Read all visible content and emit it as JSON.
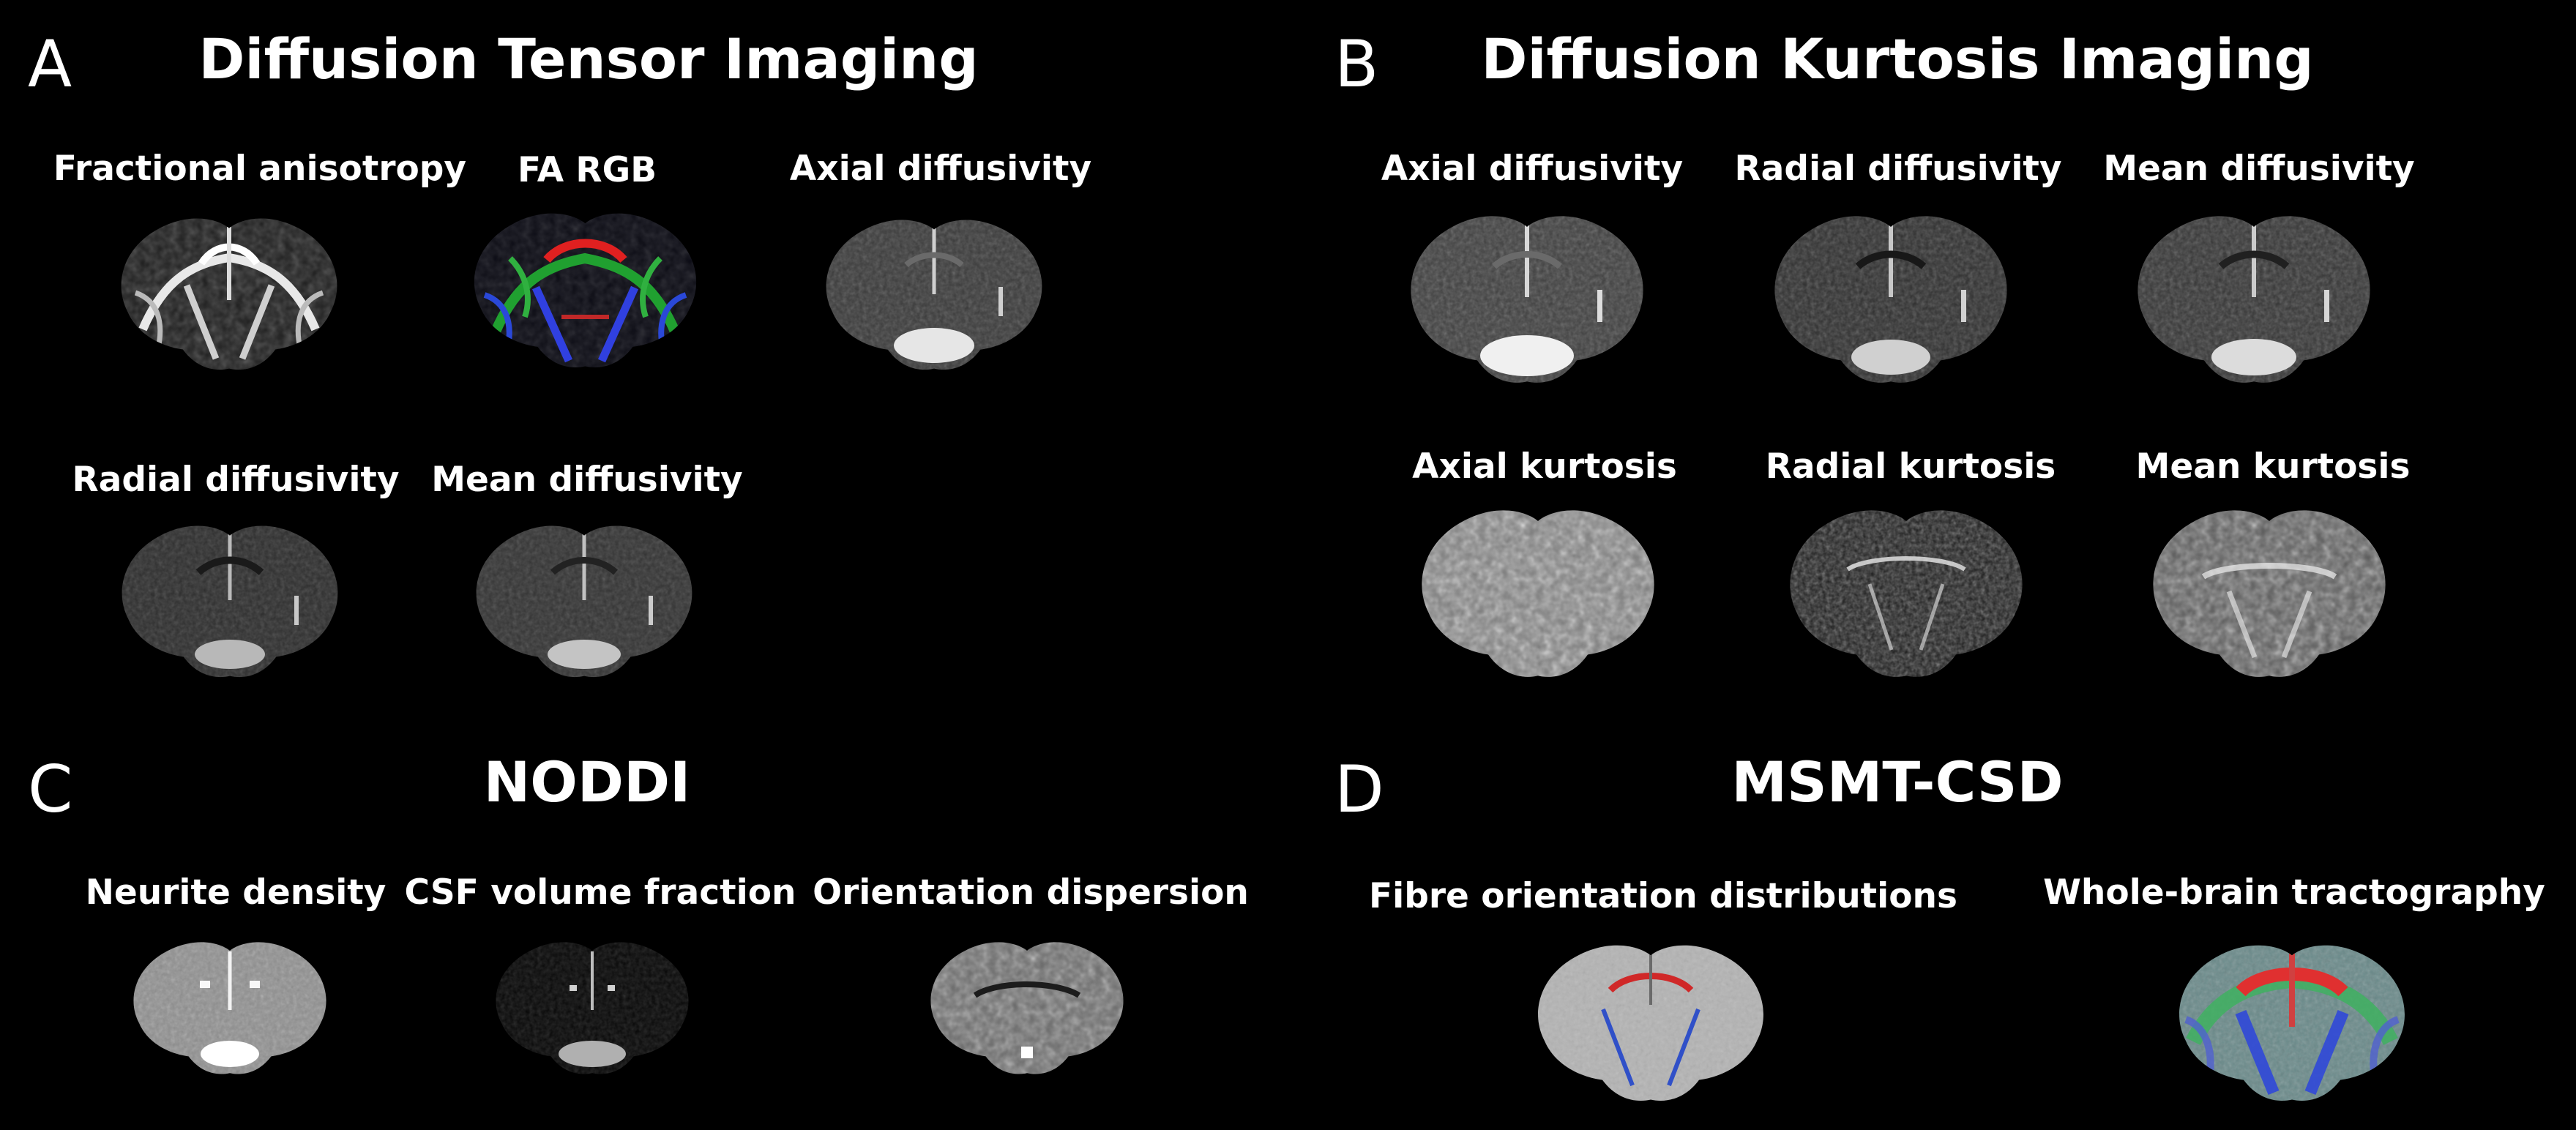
{
  "panels": {
    "a": {
      "letter": "A",
      "title": "Diffusion Tensor Imaging",
      "maps": [
        "Fractional anisotropy",
        "FA RGB",
        "Axial diffusivity",
        "Radial diffusivity",
        "Mean diffusivity"
      ]
    },
    "b": {
      "letter": "B",
      "title": "Diffusion Kurtosis Imaging",
      "maps": [
        "Axial diffusivity",
        "Radial diffusivity",
        "Mean diffusivity",
        "Axial kurtosis",
        "Radial kurtosis",
        "Mean kurtosis"
      ]
    },
    "c": {
      "letter": "C",
      "title": "NODDI",
      "maps": [
        "Neurite density",
        "CSF volume fraction",
        "Orientation dispersion"
      ]
    },
    "d": {
      "letter": "D",
      "title": "MSMT-CSD",
      "maps": [
        "Fibre orientation distributions",
        "Whole-brain tractography"
      ]
    }
  },
  "colors": {
    "background": "#000000",
    "text": "#ffffff",
    "fa_red": "#e02020",
    "fa_green": "#20c030",
    "fa_blue": "#3040e0"
  }
}
